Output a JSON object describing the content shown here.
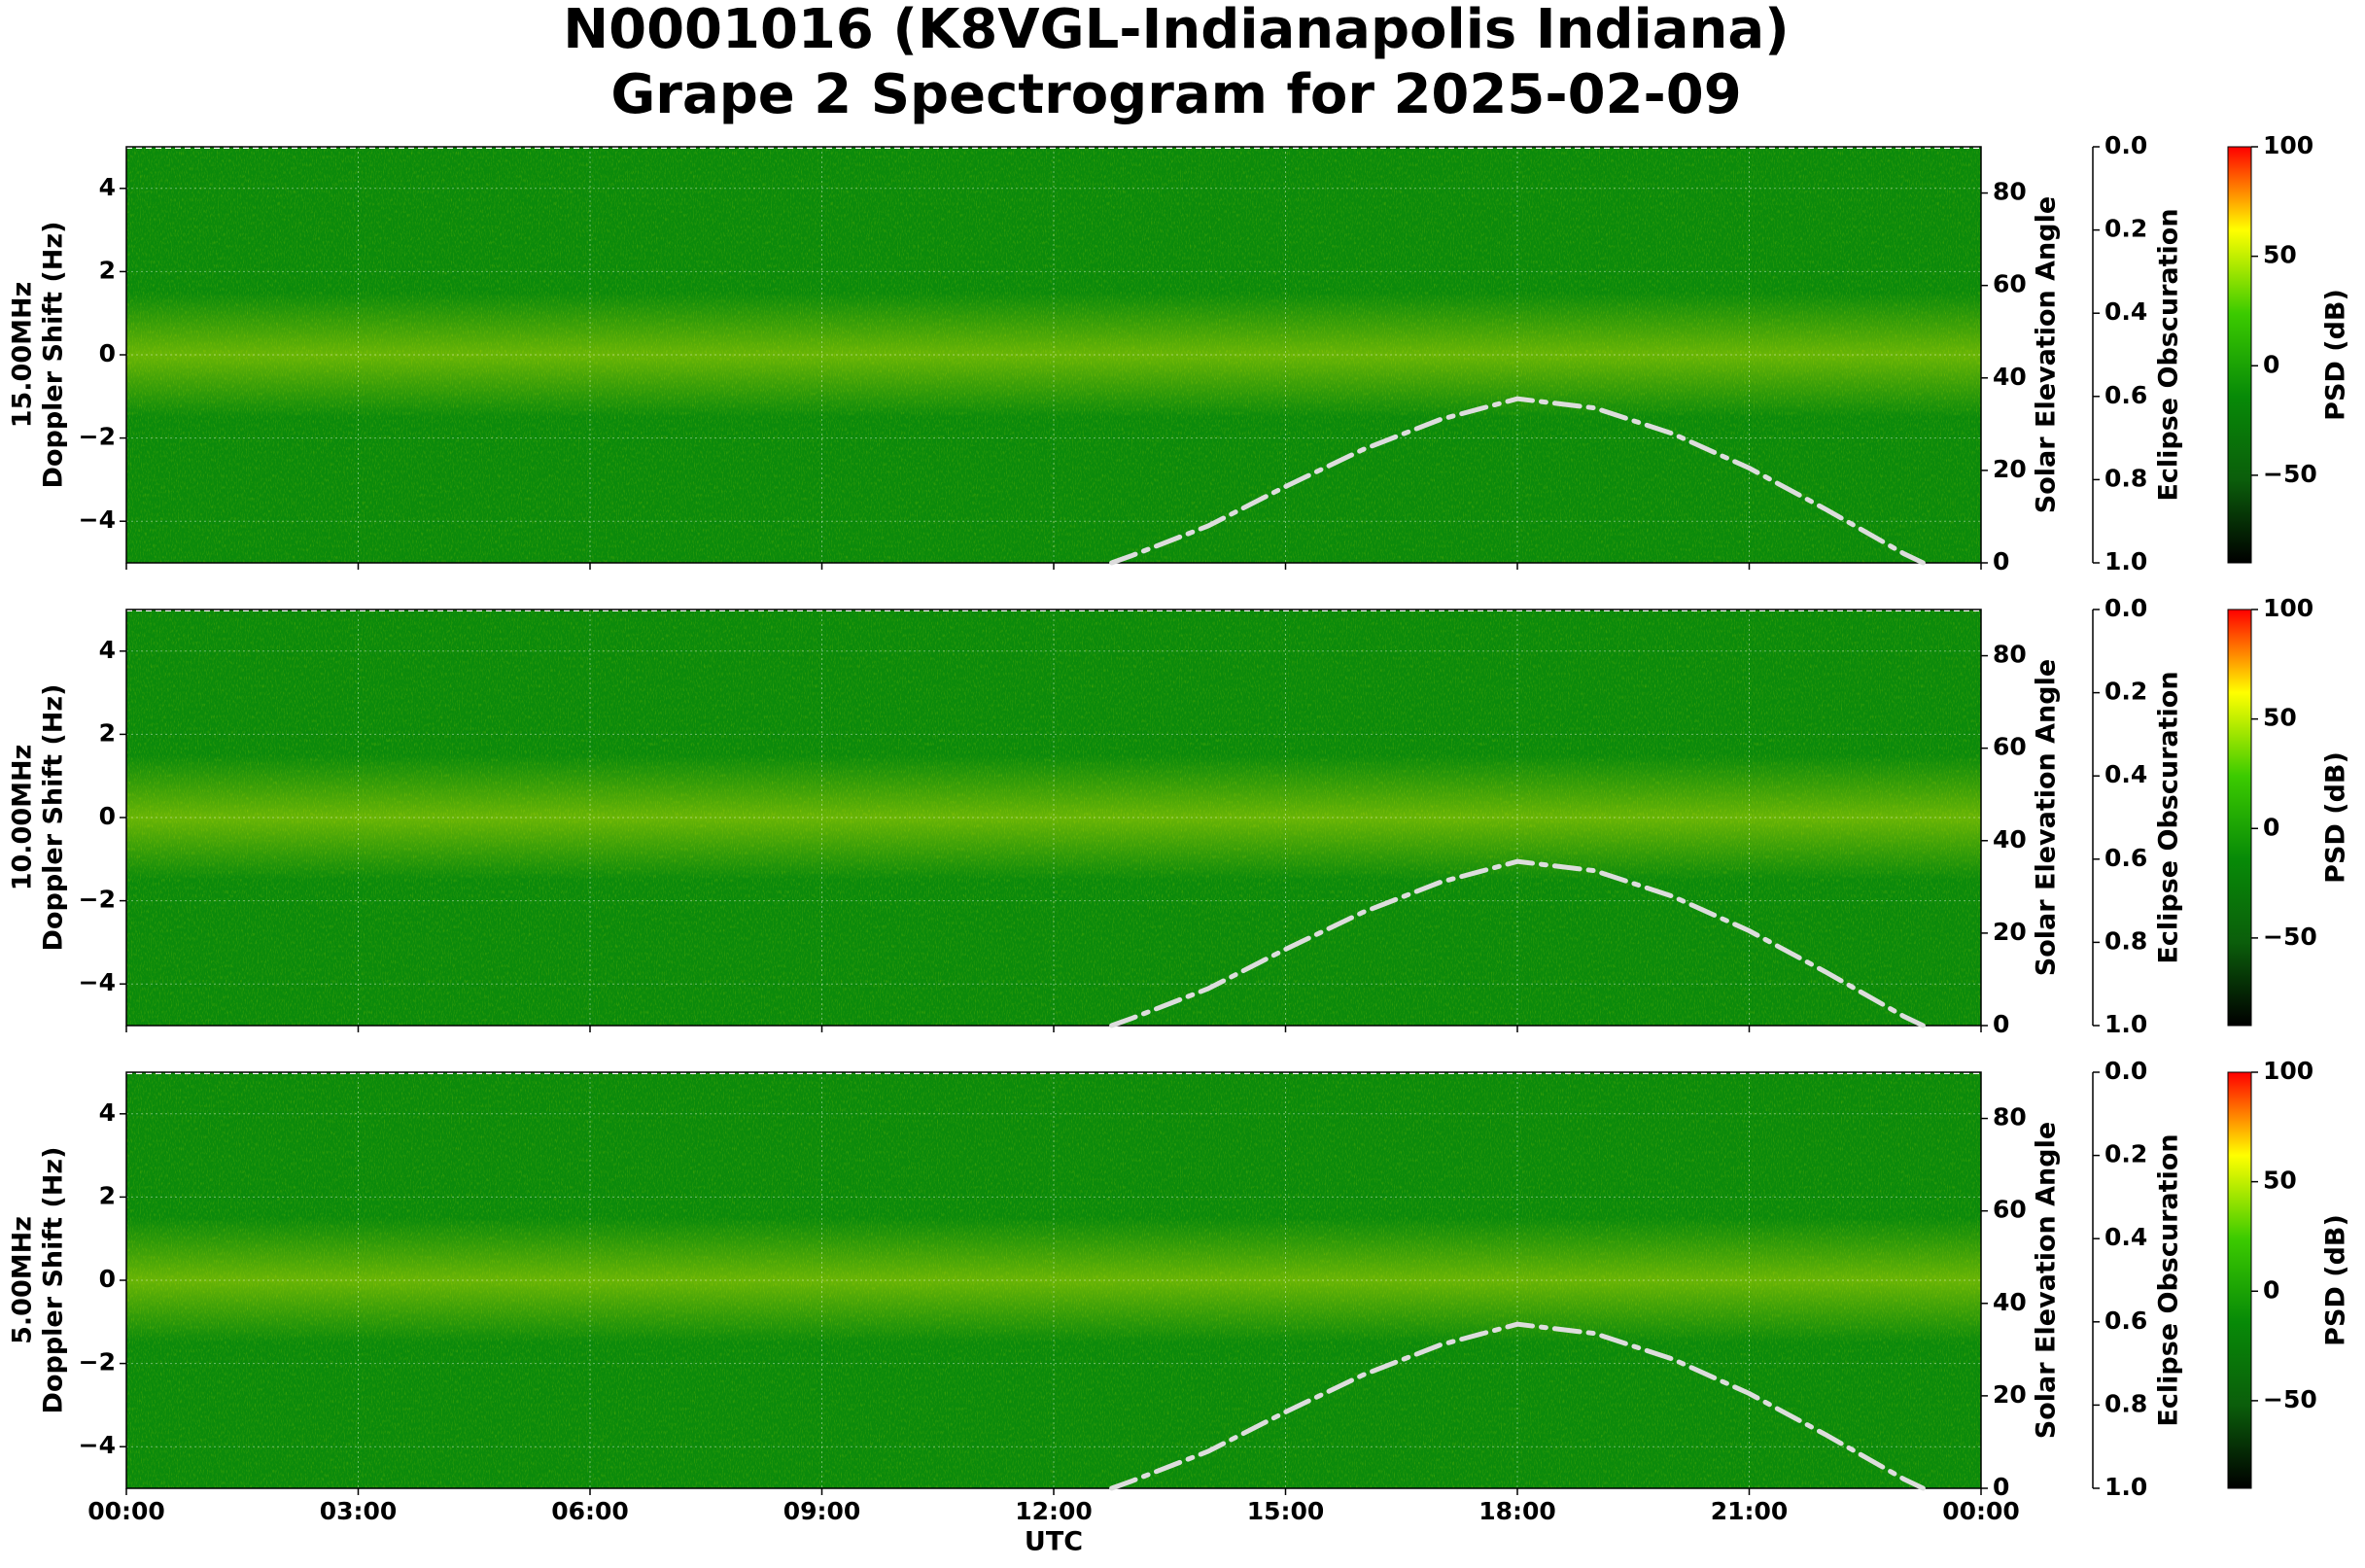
{
  "title": [
    "N0001016 (K8VGL-Indianapolis Indiana)",
    "Grape 2 Spectrogram for 2025-02-09"
  ],
  "xaxis": {
    "label": "UTC",
    "lim": [
      0,
      24
    ],
    "ticks": [
      {
        "value": 0,
        "label": "00:00"
      },
      {
        "value": 3,
        "label": "03:00"
      },
      {
        "value": 6,
        "label": "06:00"
      },
      {
        "value": 9,
        "label": "09:00"
      },
      {
        "value": 12,
        "label": "12:00"
      },
      {
        "value": 15,
        "label": "15:00"
      },
      {
        "value": 18,
        "label": "18:00"
      },
      {
        "value": 21,
        "label": "21:00"
      },
      {
        "value": 24,
        "label": "00:00"
      }
    ]
  },
  "chart_data": [
    {
      "type": "spectrogram",
      "ylabel": [
        "15.00MHz",
        "Doppler Shift (Hz)"
      ],
      "ylim": [
        -5,
        5
      ],
      "yticks": [
        {
          "value": -4,
          "label": "−4"
        },
        {
          "value": -2,
          "label": "−2"
        },
        0,
        2,
        4
      ],
      "grid": true,
      "y2label": "Solar Elevation Angle",
      "y2lim": [
        0,
        90
      ],
      "y2ticks": [
        0,
        20,
        40,
        60,
        80
      ],
      "x": [
        12.75,
        13,
        14,
        15,
        16,
        17,
        18,
        19,
        20,
        21,
        22,
        23,
        23.25
      ],
      "series": [
        {
          "color": "#dddddd",
          "axis": "y2",
          "values": [
            0,
            1.5,
            8,
            16.5,
            24.5,
            31,
            35.5,
            33.5,
            28,
            20.5,
            11.5,
            2,
            0
          ]
        }
      ],
      "y3label": "Eclipse Obscuration",
      "y3lim": [
        0,
        1
      ],
      "y3ticks": [
        {
          "value": 0,
          "label": "0.0"
        },
        {
          "value": 0.2,
          "label": "0.2"
        },
        {
          "value": 0.4,
          "label": "0.4"
        },
        {
          "value": 0.6,
          "label": "0.6"
        },
        {
          "value": 0.8,
          "label": "0.8"
        },
        {
          "value": 1,
          "label": "1.0"
        }
      ],
      "colorbar": {
        "label": "PSD (dB)",
        "lim": [
          -90,
          100
        ],
        "ticks": [
          {
            "value": -50,
            "label": "−50"
          },
          0,
          50,
          100
        ],
        "colors": [
          "#000000",
          "#0b5e0b",
          "#078a07",
          "#3ccb00",
          "#ffff00",
          "#ff0000"
        ]
      }
    },
    {
      "type": "spectrogram",
      "ylabel": [
        "10.00MHz",
        "Doppler Shift (Hz)"
      ],
      "ylim": [
        -5,
        5
      ],
      "yticks": [
        {
          "value": -4,
          "label": "−4"
        },
        {
          "value": -2,
          "label": "−2"
        },
        0,
        2,
        4
      ],
      "grid": true,
      "y2label": "Solar Elevation Angle",
      "y2lim": [
        0,
        90
      ],
      "y2ticks": [
        0,
        20,
        40,
        60,
        80
      ],
      "x": [
        12.75,
        13,
        14,
        15,
        16,
        17,
        18,
        19,
        20,
        21,
        22,
        23,
        23.25
      ],
      "series": [
        {
          "color": "#dddddd",
          "axis": "y2",
          "values": [
            0,
            1.5,
            8,
            16.5,
            24.5,
            31,
            35.5,
            33.5,
            28,
            20.5,
            11.5,
            2,
            0
          ]
        }
      ],
      "y3label": "Eclipse Obscuration",
      "y3lim": [
        0,
        1
      ],
      "y3ticks": [
        {
          "value": 0,
          "label": "0.0"
        },
        {
          "value": 0.2,
          "label": "0.2"
        },
        {
          "value": 0.4,
          "label": "0.4"
        },
        {
          "value": 0.6,
          "label": "0.6"
        },
        {
          "value": 0.8,
          "label": "0.8"
        },
        {
          "value": 1,
          "label": "1.0"
        }
      ],
      "colorbar": {
        "label": "PSD (dB)",
        "lim": [
          -90,
          100
        ],
        "ticks": [
          {
            "value": -50,
            "label": "−50"
          },
          0,
          50,
          100
        ],
        "colors": [
          "#000000",
          "#0b5e0b",
          "#078a07",
          "#3ccb00",
          "#ffff00",
          "#ff0000"
        ]
      }
    },
    {
      "type": "spectrogram",
      "ylabel": [
        "5.00MHz",
        "Doppler Shift (Hz)"
      ],
      "ylim": [
        -5,
        5
      ],
      "yticks": [
        {
          "value": -4,
          "label": "−4"
        },
        {
          "value": -2,
          "label": "−2"
        },
        0,
        2,
        4
      ],
      "grid": true,
      "y2label": "Solar Elevation Angle",
      "y2lim": [
        0,
        90
      ],
      "y2ticks": [
        0,
        20,
        40,
        60,
        80
      ],
      "x": [
        12.75,
        13,
        14,
        15,
        16,
        17,
        18,
        19,
        20,
        21,
        22,
        23,
        23.25
      ],
      "series": [
        {
          "color": "#dddddd",
          "axis": "y2",
          "values": [
            0,
            1.5,
            8,
            16.5,
            24.5,
            31,
            35.5,
            33.5,
            28,
            20.5,
            11.5,
            2,
            0
          ]
        }
      ],
      "y3label": "Eclipse Obscuration",
      "y3lim": [
        0,
        1
      ],
      "y3ticks": [
        {
          "value": 0,
          "label": "0.0"
        },
        {
          "value": 0.2,
          "label": "0.2"
        },
        {
          "value": 0.4,
          "label": "0.4"
        },
        {
          "value": 0.6,
          "label": "0.6"
        },
        {
          "value": 0.8,
          "label": "0.8"
        },
        {
          "value": 1,
          "label": "1.0"
        }
      ],
      "colorbar": {
        "label": "PSD (dB)",
        "lim": [
          -90,
          100
        ],
        "ticks": [
          {
            "value": -50,
            "label": "−50"
          },
          0,
          50,
          100
        ],
        "colors": [
          "#000000",
          "#0b5e0b",
          "#078a07",
          "#3ccb00",
          "#ffff00",
          "#ff0000"
        ]
      }
    }
  ]
}
